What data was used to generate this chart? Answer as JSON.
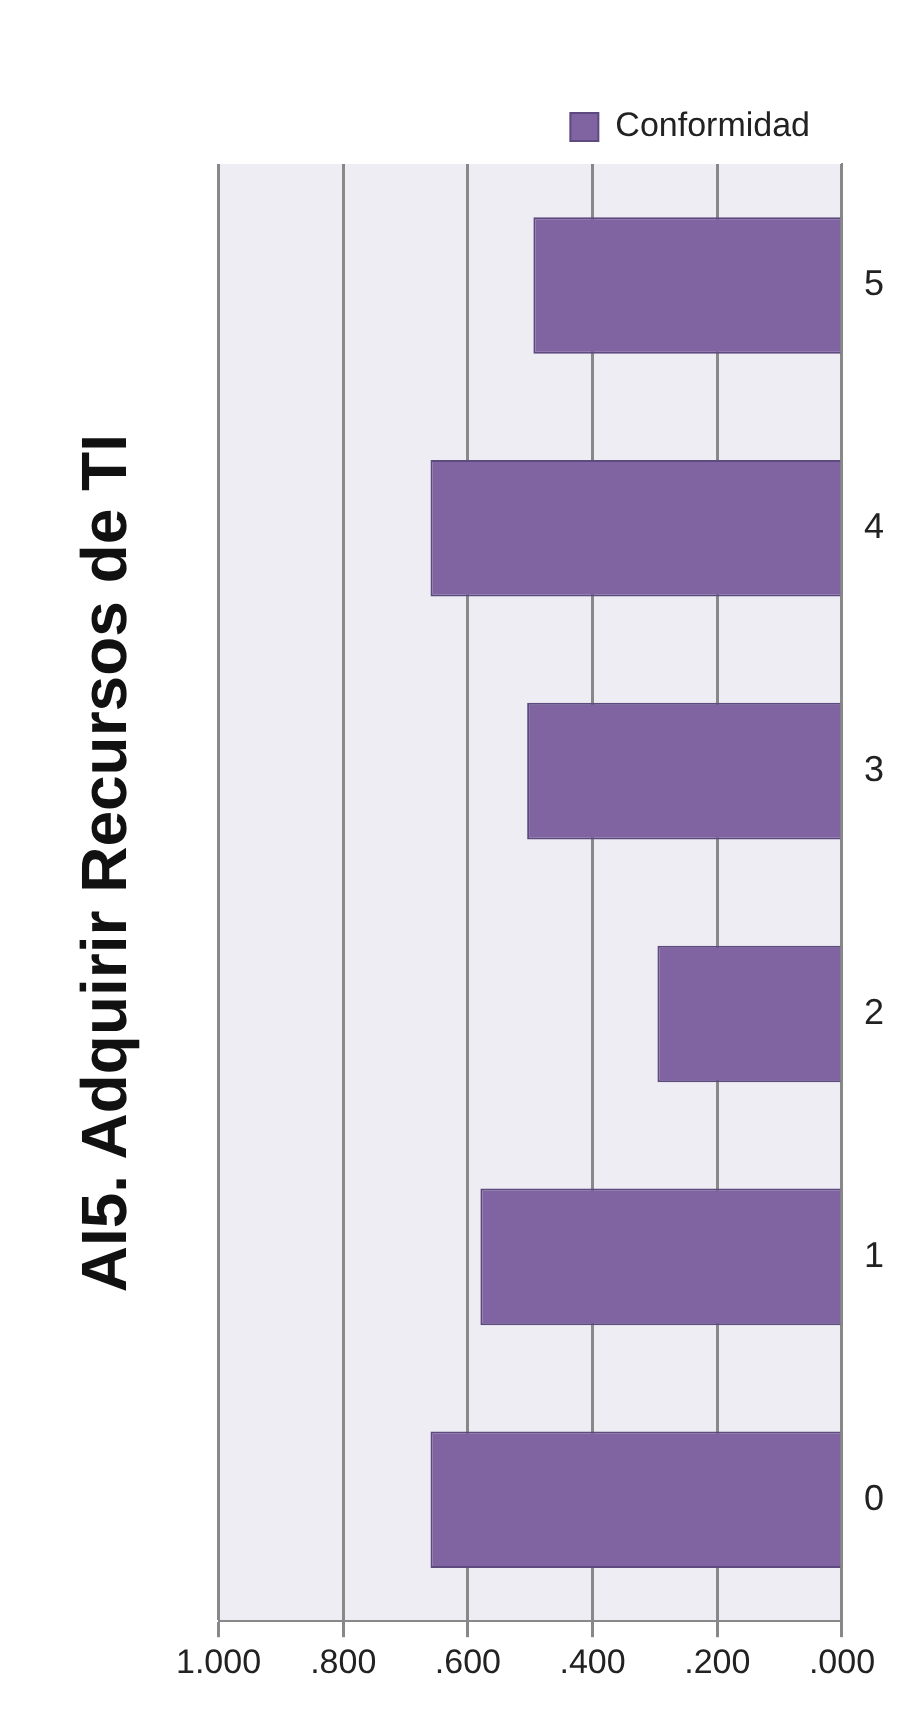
{
  "chart_data": {
    "type": "bar",
    "title": "AI5. Adquirir Recursos de TI",
    "orientation": "horizontal",
    "categories": [
      "5",
      "4",
      "3",
      "2",
      "1",
      "0"
    ],
    "series": [
      {
        "name": "Conformidad",
        "color": "#8064a2",
        "values": [
          0.495,
          0.66,
          0.505,
          0.296,
          0.58,
          0.66
        ]
      }
    ],
    "xlim": [
      1,
      0
    ],
    "xticks": [
      {
        "value": 1,
        "label": "1.000"
      },
      {
        "value": 0.8,
        "label": ".800"
      },
      {
        "value": 0.6,
        "label": ".600"
      },
      {
        "value": 0.4,
        "label": ".400"
      },
      {
        "value": 0.2,
        "label": ".200"
      },
      {
        "value": 0,
        "label": ".000"
      }
    ],
    "grid": "x",
    "legend": "top right"
  }
}
